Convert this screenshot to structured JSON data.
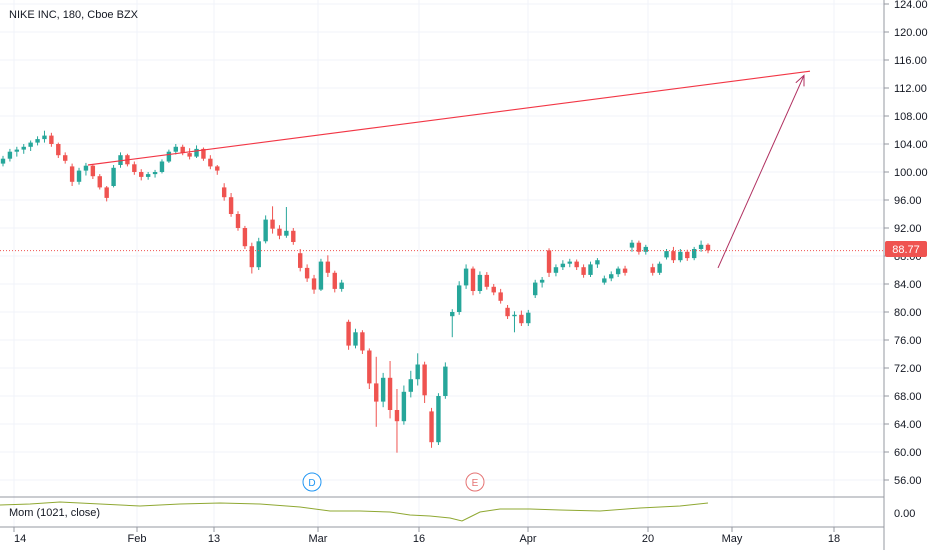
{
  "header": {
    "title": "NIKE INC, 180, Cboe BZX"
  },
  "indicator": {
    "label": "Mom (1021, close)",
    "zero_label": "0.00"
  },
  "price_tag": {
    "value": "88.77",
    "bg": "#ef5350"
  },
  "events": [
    {
      "letter": "D",
      "color": "#2196f3"
    },
    {
      "letter": "E",
      "color": "#e57373"
    }
  ],
  "colors": {
    "up": "#26a69a",
    "down": "#ef5350",
    "trendline": "#f23645",
    "arrow": "#b03060",
    "momentum": "#8fa832",
    "grid": "#f0f3fa"
  },
  "chart_data": {
    "type": "candlestick",
    "title": "NIKE INC, 180, Cboe BZX",
    "y_ticks": [
      "124.00",
      "120.00",
      "116.00",
      "112.00",
      "108.00",
      "104.00",
      "100.00",
      "96.00",
      "92.00",
      "88.00",
      "84.00",
      "80.00",
      "76.00",
      "72.00",
      "68.00",
      "64.00",
      "60.00",
      "56.00"
    ],
    "ylim": [
      53.5,
      125
    ],
    "x_ticks": [
      "14",
      "Feb",
      "13",
      "Mar",
      "16",
      "Apr",
      "20",
      "May",
      "18"
    ],
    "last_price": 88.77,
    "candles": [
      {
        "o": 101.2,
        "h": 102.3,
        "l": 100.8,
        "c": 101.9
      },
      {
        "o": 101.9,
        "h": 103.3,
        "l": 101.5,
        "c": 102.9
      },
      {
        "o": 102.9,
        "h": 103.6,
        "l": 102.2,
        "c": 103.2
      },
      {
        "o": 103.2,
        "h": 104.0,
        "l": 102.6,
        "c": 103.6
      },
      {
        "o": 103.6,
        "h": 104.5,
        "l": 103.0,
        "c": 104.2
      },
      {
        "o": 104.2,
        "h": 105.1,
        "l": 103.8,
        "c": 104.7
      },
      {
        "o": 104.7,
        "h": 105.9,
        "l": 104.2,
        "c": 105.2
      },
      {
        "o": 105.2,
        "h": 105.6,
        "l": 103.6,
        "c": 104.0
      },
      {
        "o": 104.0,
        "h": 104.2,
        "l": 102.0,
        "c": 102.4
      },
      {
        "o": 102.4,
        "h": 102.8,
        "l": 101.2,
        "c": 101.6
      },
      {
        "o": 100.8,
        "h": 101.2,
        "l": 98.0,
        "c": 98.6
      },
      {
        "o": 98.6,
        "h": 100.6,
        "l": 98.2,
        "c": 100.2
      },
      {
        "o": 100.2,
        "h": 101.3,
        "l": 99.5,
        "c": 100.9
      },
      {
        "o": 100.9,
        "h": 101.1,
        "l": 99.0,
        "c": 99.4
      },
      {
        "o": 99.4,
        "h": 99.7,
        "l": 97.5,
        "c": 97.8
      },
      {
        "o": 97.8,
        "h": 98.0,
        "l": 95.8,
        "c": 96.3
      },
      {
        "o": 98.0,
        "h": 101.0,
        "l": 97.8,
        "c": 100.6
      },
      {
        "o": 101.0,
        "h": 102.8,
        "l": 100.6,
        "c": 102.4
      },
      {
        "o": 102.4,
        "h": 102.6,
        "l": 100.8,
        "c": 101.1
      },
      {
        "o": 101.1,
        "h": 101.5,
        "l": 99.6,
        "c": 100.0
      },
      {
        "o": 100.0,
        "h": 100.4,
        "l": 98.8,
        "c": 99.3
      },
      {
        "o": 99.3,
        "h": 100.0,
        "l": 98.9,
        "c": 99.7
      },
      {
        "o": 99.7,
        "h": 100.3,
        "l": 99.2,
        "c": 100.0
      },
      {
        "o": 100.0,
        "h": 101.8,
        "l": 99.8,
        "c": 101.5
      },
      {
        "o": 101.5,
        "h": 103.2,
        "l": 101.3,
        "c": 102.9
      },
      {
        "o": 102.9,
        "h": 104.0,
        "l": 102.5,
        "c": 103.6
      },
      {
        "o": 103.6,
        "h": 103.9,
        "l": 102.4,
        "c": 102.7
      },
      {
        "o": 102.7,
        "h": 103.4,
        "l": 101.8,
        "c": 102.2
      },
      {
        "o": 102.2,
        "h": 103.8,
        "l": 102.0,
        "c": 103.3
      },
      {
        "o": 103.3,
        "h": 103.5,
        "l": 101.6,
        "c": 101.9
      },
      {
        "o": 101.9,
        "h": 102.4,
        "l": 100.4,
        "c": 100.8
      },
      {
        "o": 100.8,
        "h": 101.0,
        "l": 99.6,
        "c": 100.2
      },
      {
        "o": 97.8,
        "h": 98.4,
        "l": 95.9,
        "c": 96.4
      },
      {
        "o": 96.4,
        "h": 97.0,
        "l": 93.6,
        "c": 94.0
      },
      {
        "o": 94.0,
        "h": 94.4,
        "l": 91.6,
        "c": 92.0
      },
      {
        "o": 92.0,
        "h": 92.3,
        "l": 89.0,
        "c": 89.4
      },
      {
        "o": 89.4,
        "h": 89.9,
        "l": 85.5,
        "c": 86.4
      },
      {
        "o": 86.4,
        "h": 90.6,
        "l": 86.0,
        "c": 90.1
      },
      {
        "o": 90.1,
        "h": 93.8,
        "l": 89.8,
        "c": 93.2
      },
      {
        "o": 93.2,
        "h": 95.1,
        "l": 91.2,
        "c": 91.9
      },
      {
        "o": 91.9,
        "h": 92.4,
        "l": 90.4,
        "c": 90.9
      },
      {
        "o": 90.9,
        "h": 95.0,
        "l": 90.6,
        "c": 91.6
      },
      {
        "o": 91.6,
        "h": 92.0,
        "l": 89.6,
        "c": 90.0
      },
      {
        "o": 88.4,
        "h": 89.0,
        "l": 85.8,
        "c": 86.3
      },
      {
        "o": 86.3,
        "h": 86.8,
        "l": 84.3,
        "c": 84.8
      },
      {
        "o": 84.8,
        "h": 85.3,
        "l": 82.6,
        "c": 83.2
      },
      {
        "o": 83.2,
        "h": 87.6,
        "l": 83.0,
        "c": 87.2
      },
      {
        "o": 87.2,
        "h": 88.1,
        "l": 85.0,
        "c": 85.6
      },
      {
        "o": 85.6,
        "h": 85.9,
        "l": 82.8,
        "c": 83.3
      },
      {
        "o": 83.3,
        "h": 84.6,
        "l": 82.9,
        "c": 84.2
      },
      {
        "o": 78.6,
        "h": 78.9,
        "l": 74.6,
        "c": 75.2
      },
      {
        "o": 75.2,
        "h": 77.6,
        "l": 74.8,
        "c": 77.1
      },
      {
        "o": 77.1,
        "h": 77.4,
        "l": 74.0,
        "c": 74.5
      },
      {
        "o": 74.5,
        "h": 74.8,
        "l": 69.0,
        "c": 69.8
      },
      {
        "o": 69.8,
        "h": 73.6,
        "l": 63.6,
        "c": 67.2
      },
      {
        "o": 67.2,
        "h": 71.3,
        "l": 66.4,
        "c": 70.6
      },
      {
        "o": 70.6,
        "h": 73.0,
        "l": 64.8,
        "c": 66.0
      },
      {
        "o": 66.0,
        "h": 69.0,
        "l": 59.9,
        "c": 64.4
      },
      {
        "o": 64.4,
        "h": 69.5,
        "l": 63.9,
        "c": 68.6
      },
      {
        "o": 68.6,
        "h": 71.6,
        "l": 67.8,
        "c": 70.4
      },
      {
        "o": 70.4,
        "h": 74.1,
        "l": 69.5,
        "c": 72.5
      },
      {
        "o": 72.5,
        "h": 72.9,
        "l": 67.0,
        "c": 68.1
      },
      {
        "o": 65.8,
        "h": 66.3,
        "l": 60.6,
        "c": 61.4
      },
      {
        "o": 61.4,
        "h": 68.4,
        "l": 61.0,
        "c": 68.0
      },
      {
        "o": 68.0,
        "h": 72.8,
        "l": 67.6,
        "c": 72.2
      },
      {
        "o": 79.4,
        "h": 80.4,
        "l": 76.4,
        "c": 80.0
      },
      {
        "o": 80.0,
        "h": 84.4,
        "l": 79.6,
        "c": 83.8
      },
      {
        "o": 83.8,
        "h": 86.8,
        "l": 83.3,
        "c": 86.2
      },
      {
        "o": 86.2,
        "h": 86.5,
        "l": 82.4,
        "c": 83.0
      },
      {
        "o": 83.0,
        "h": 85.8,
        "l": 82.6,
        "c": 85.3
      },
      {
        "o": 85.3,
        "h": 85.7,
        "l": 83.2,
        "c": 83.6
      },
      {
        "o": 83.6,
        "h": 84.0,
        "l": 82.4,
        "c": 82.8
      },
      {
        "o": 82.8,
        "h": 83.3,
        "l": 81.2,
        "c": 81.6
      },
      {
        "o": 80.6,
        "h": 81.0,
        "l": 79.0,
        "c": 79.4
      },
      {
        "o": 79.4,
        "h": 80.1,
        "l": 77.1,
        "c": 79.6
      },
      {
        "o": 79.6,
        "h": 80.2,
        "l": 78.0,
        "c": 78.4
      },
      {
        "o": 78.4,
        "h": 80.3,
        "l": 78.0,
        "c": 79.9
      },
      {
        "o": 82.4,
        "h": 84.6,
        "l": 82.0,
        "c": 84.2
      },
      {
        "o": 84.2,
        "h": 85.0,
        "l": 83.5,
        "c": 84.6
      },
      {
        "o": 88.8,
        "h": 89.1,
        "l": 85.0,
        "c": 85.6
      },
      {
        "o": 85.6,
        "h": 86.8,
        "l": 85.1,
        "c": 86.4
      },
      {
        "o": 86.4,
        "h": 87.4,
        "l": 86.0,
        "c": 86.9
      },
      {
        "o": 86.9,
        "h": 87.6,
        "l": 86.4,
        "c": 87.2
      },
      {
        "o": 87.2,
        "h": 87.5,
        "l": 86.0,
        "c": 86.4
      },
      {
        "o": 86.4,
        "h": 86.8,
        "l": 84.9,
        "c": 85.3
      },
      {
        "o": 85.3,
        "h": 87.2,
        "l": 85.0,
        "c": 86.8
      },
      {
        "o": 86.8,
        "h": 87.7,
        "l": 86.3,
        "c": 87.4
      },
      {
        "o": 84.2,
        "h": 85.2,
        "l": 83.9,
        "c": 84.8
      },
      {
        "o": 84.8,
        "h": 85.8,
        "l": 84.4,
        "c": 85.4
      },
      {
        "o": 85.4,
        "h": 86.5,
        "l": 85.0,
        "c": 86.2
      },
      {
        "o": 86.2,
        "h": 86.6,
        "l": 85.2,
        "c": 85.6
      },
      {
        "o": 89.2,
        "h": 90.3,
        "l": 88.6,
        "c": 89.9
      },
      {
        "o": 89.9,
        "h": 90.2,
        "l": 88.2,
        "c": 88.6
      },
      {
        "o": 88.6,
        "h": 89.6,
        "l": 88.2,
        "c": 89.3
      },
      {
        "o": 86.4,
        "h": 86.9,
        "l": 85.2,
        "c": 85.6
      },
      {
        "o": 85.6,
        "h": 87.2,
        "l": 85.3,
        "c": 86.9
      },
      {
        "o": 87.8,
        "h": 89.0,
        "l": 87.5,
        "c": 88.7
      },
      {
        "o": 88.7,
        "h": 89.3,
        "l": 87.0,
        "c": 87.4
      },
      {
        "o": 87.4,
        "h": 89.0,
        "l": 87.1,
        "c": 88.6
      },
      {
        "o": 88.6,
        "h": 88.9,
        "l": 87.3,
        "c": 87.7
      },
      {
        "o": 87.7,
        "h": 89.3,
        "l": 87.4,
        "c": 89.0
      },
      {
        "o": 89.0,
        "h": 90.2,
        "l": 88.6,
        "c": 89.6
      },
      {
        "o": 89.6,
        "h": 89.8,
        "l": 88.4,
        "c": 88.8
      }
    ],
    "trendline": {
      "from_date_label": "Jan 30",
      "from_price": 101.0,
      "to_date_label": "May 14",
      "to_price": 114.4
    },
    "projection_arrow": {
      "from_price": 86.3,
      "to_price": 113.8
    }
  }
}
